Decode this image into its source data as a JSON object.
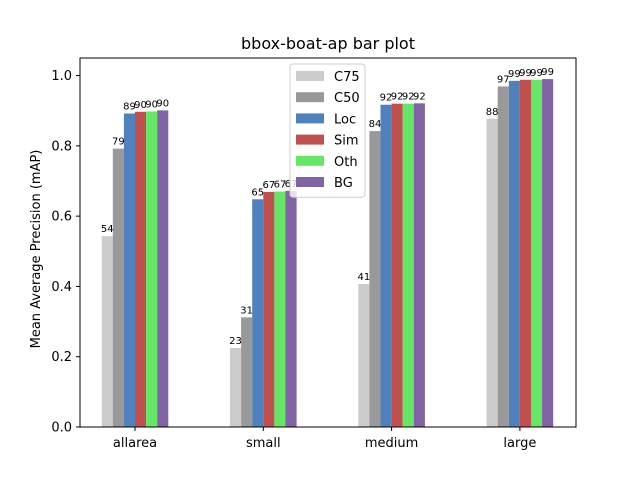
{
  "chart_data": {
    "type": "bar",
    "title": "bbox-boat-ap bar plot",
    "xlabel": "",
    "ylabel": "Mean Average Precision (mAP)",
    "ylim": [
      0,
      1.05
    ],
    "yticks": [
      0.0,
      0.2,
      0.4,
      0.6,
      0.8,
      1.0
    ],
    "ytick_labels": [
      "0.0",
      "0.2",
      "0.4",
      "0.6",
      "0.8",
      "1.0"
    ],
    "categories": [
      "allarea",
      "small",
      "medium",
      "large"
    ],
    "legend_position": "top-center",
    "grid": false,
    "series": [
      {
        "name": "C75",
        "color": "#cccccc",
        "values": [
          0.543,
          0.225,
          0.407,
          0.877
        ],
        "labels": [
          "54",
          "23",
          "41",
          "88"
        ]
      },
      {
        "name": "C50",
        "color": "#999999",
        "values": [
          0.792,
          0.312,
          0.842,
          0.969
        ],
        "labels": [
          "79",
          "31",
          "84",
          "97"
        ]
      },
      {
        "name": "Loc",
        "color": "#4f81bd",
        "values": [
          0.892,
          0.648,
          0.917,
          0.985
        ],
        "labels": [
          "89",
          "65",
          "92",
          "99"
        ]
      },
      {
        "name": "Sim",
        "color": "#c0504d",
        "values": [
          0.897,
          0.669,
          0.92,
          0.988
        ],
        "labels": [
          "90",
          "67",
          "92",
          "99"
        ]
      },
      {
        "name": "Oth",
        "color": "#66e666",
        "values": [
          0.898,
          0.67,
          0.92,
          0.988
        ],
        "labels": [
          "90",
          "67",
          "92",
          "99"
        ]
      },
      {
        "name": "BG",
        "color": "#7f63a2",
        "values": [
          0.901,
          0.672,
          0.921,
          0.99
        ],
        "labels": [
          "90",
          "67",
          "92",
          "99"
        ]
      }
    ]
  }
}
